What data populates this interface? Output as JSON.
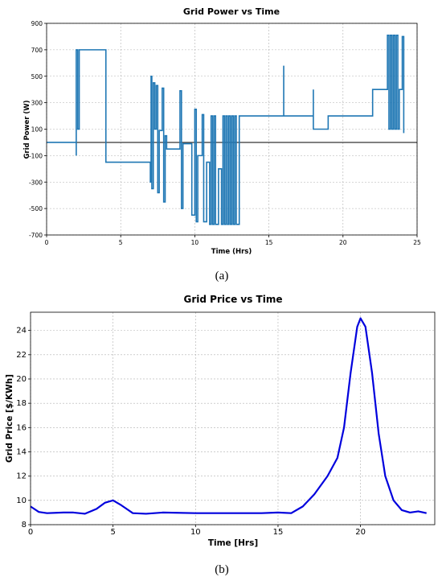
{
  "chart_data": [
    {
      "type": "line",
      "title": "Grid Power vs Time",
      "xlabel": "Time (Hrs)",
      "ylabel": "Grid Power (W)",
      "xlim": [
        0,
        25
      ],
      "ylim": [
        -700,
        900
      ],
      "xticks": [
        "0",
        "5",
        "10",
        "15",
        "20",
        "25"
      ],
      "yticks": [
        "900",
        "700",
        "500",
        "300",
        "100",
        "-100",
        "-300",
        "-500",
        "-700"
      ],
      "grid": true,
      "reference_line": 0,
      "caption": "(a)",
      "color": "#1f77b4",
      "series": [
        {
          "points": [
            [
              0,
              0
            ],
            [
              2,
              0
            ],
            [
              2,
              -100
            ],
            [
              2,
              0
            ],
            [
              2,
              700
            ],
            [
              2.1,
              700
            ],
            [
              2.1,
              100
            ],
            [
              2.2,
              100
            ],
            [
              2.2,
              700
            ],
            [
              4,
              700
            ],
            [
              4,
              -150
            ],
            [
              7,
              -150
            ],
            [
              7,
              -300
            ],
            [
              7.05,
              -300
            ],
            [
              7.05,
              500
            ],
            [
              7.1,
              500
            ],
            [
              7.1,
              -350
            ],
            [
              7.2,
              -350
            ],
            [
              7.2,
              450
            ],
            [
              7.3,
              450
            ],
            [
              7.3,
              100
            ],
            [
              7.4,
              100
            ],
            [
              7.4,
              430
            ],
            [
              7.5,
              430
            ],
            [
              7.5,
              -380
            ],
            [
              7.6,
              -380
            ],
            [
              7.6,
              90
            ],
            [
              7.8,
              90
            ],
            [
              7.8,
              410
            ],
            [
              7.9,
              410
            ],
            [
              7.9,
              -450
            ],
            [
              8,
              -450
            ],
            [
              8,
              50
            ],
            [
              8.1,
              50
            ],
            [
              8.1,
              -50
            ],
            [
              9,
              -50
            ],
            [
              9,
              390
            ],
            [
              9.1,
              390
            ],
            [
              9.1,
              -500
            ],
            [
              9.2,
              -500
            ],
            [
              9.2,
              -10
            ],
            [
              9.8,
              -10
            ],
            [
              9.8,
              -550
            ],
            [
              10,
              -550
            ],
            [
              10,
              250
            ],
            [
              10.1,
              250
            ],
            [
              10.1,
              -600
            ],
            [
              10.2,
              -600
            ],
            [
              10.2,
              -100
            ],
            [
              10.5,
              -100
            ],
            [
              10.5,
              210
            ],
            [
              10.6,
              210
            ],
            [
              10.6,
              -600
            ],
            [
              10.8,
              -600
            ],
            [
              10.8,
              -150
            ],
            [
              11,
              -150
            ],
            [
              11,
              -620
            ],
            [
              11.1,
              -620
            ],
            [
              11.1,
              200
            ],
            [
              11.2,
              200
            ],
            [
              11.2,
              -620
            ],
            [
              11.3,
              -620
            ],
            [
              11.3,
              200
            ],
            [
              11.4,
              200
            ],
            [
              11.4,
              -620
            ],
            [
              11.6,
              -620
            ],
            [
              11.6,
              -200
            ],
            [
              11.8,
              -200
            ],
            [
              11.8,
              -620
            ],
            [
              11.9,
              -620
            ],
            [
              11.9,
              200
            ],
            [
              12,
              200
            ],
            [
              12,
              -620
            ],
            [
              12.1,
              -620
            ],
            [
              12.1,
              200
            ],
            [
              12.2,
              200
            ],
            [
              12.2,
              -620
            ],
            [
              12.3,
              -620
            ],
            [
              12.3,
              200
            ],
            [
              12.4,
              200
            ],
            [
              12.4,
              -620
            ],
            [
              12.5,
              -620
            ],
            [
              12.5,
              200
            ],
            [
              12.6,
              200
            ],
            [
              12.6,
              -620
            ],
            [
              12.7,
              -620
            ],
            [
              12.7,
              200
            ],
            [
              12.8,
              200
            ],
            [
              12.8,
              -620
            ],
            [
              13,
              -620
            ],
            [
              13,
              200
            ],
            [
              16,
              200
            ],
            [
              16,
              580
            ],
            [
              16,
              200
            ],
            [
              18,
              200
            ],
            [
              18,
              400
            ],
            [
              18,
              100
            ],
            [
              19,
              100
            ],
            [
              19,
              200
            ],
            [
              22,
              200
            ],
            [
              22,
              400
            ],
            [
              23,
              400
            ],
            [
              23,
              810
            ],
            [
              23.1,
              810
            ],
            [
              23.1,
              100
            ],
            [
              23.2,
              100
            ],
            [
              23.2,
              810
            ],
            [
              23.3,
              810
            ],
            [
              23.3,
              100
            ],
            [
              23.4,
              100
            ],
            [
              23.4,
              810
            ],
            [
              23.5,
              810
            ],
            [
              23.5,
              100
            ],
            [
              23.6,
              100
            ],
            [
              23.6,
              810
            ],
            [
              23.7,
              810
            ],
            [
              23.7,
              100
            ],
            [
              23.8,
              100
            ],
            [
              23.8,
              400
            ],
            [
              24,
              400
            ],
            [
              24,
              800
            ],
            [
              24.1,
              800
            ],
            [
              24.1,
              70
            ]
          ]
        }
      ]
    },
    {
      "type": "line",
      "title": "Grid Price vs Time",
      "xlabel": "Time [Hrs]",
      "ylabel": "Grid Price [$/KWh]",
      "xlim": [
        0,
        24.5
      ],
      "ylim": [
        8,
        25.5
      ],
      "xticks": [
        "0",
        "5",
        "10",
        "15",
        "20"
      ],
      "yticks": [
        "8",
        "10",
        "12",
        "14",
        "16",
        "18",
        "20",
        "22",
        "24"
      ],
      "grid": true,
      "caption": "(b)",
      "color": "#0000dd",
      "series": [
        {
          "points": [
            [
              0,
              9.5
            ],
            [
              0.5,
              9.05
            ],
            [
              1,
              8.95
            ],
            [
              2,
              9.0
            ],
            [
              2.6,
              9.0
            ],
            [
              3.3,
              8.9
            ],
            [
              4,
              9.3
            ],
            [
              4.5,
              9.8
            ],
            [
              5,
              10.0
            ],
            [
              5.5,
              9.6
            ],
            [
              6.2,
              8.95
            ],
            [
              7,
              8.9
            ],
            [
              8,
              9.0
            ],
            [
              10,
              8.95
            ],
            [
              12,
              8.95
            ],
            [
              14,
              8.95
            ],
            [
              15,
              9.0
            ],
            [
              15.8,
              8.95
            ],
            [
              16.5,
              9.5
            ],
            [
              17.2,
              10.5
            ],
            [
              18,
              12
            ],
            [
              18.6,
              13.5
            ],
            [
              19,
              16
            ],
            [
              19.4,
              20.5
            ],
            [
              19.8,
              24.3
            ],
            [
              20,
              25
            ],
            [
              20.3,
              24.3
            ],
            [
              20.7,
              20.5
            ],
            [
              21.1,
              15.5
            ],
            [
              21.5,
              12
            ],
            [
              22,
              10
            ],
            [
              22.5,
              9.2
            ],
            [
              23,
              9.0
            ],
            [
              23.5,
              9.1
            ],
            [
              24,
              8.95
            ]
          ]
        }
      ]
    }
  ]
}
